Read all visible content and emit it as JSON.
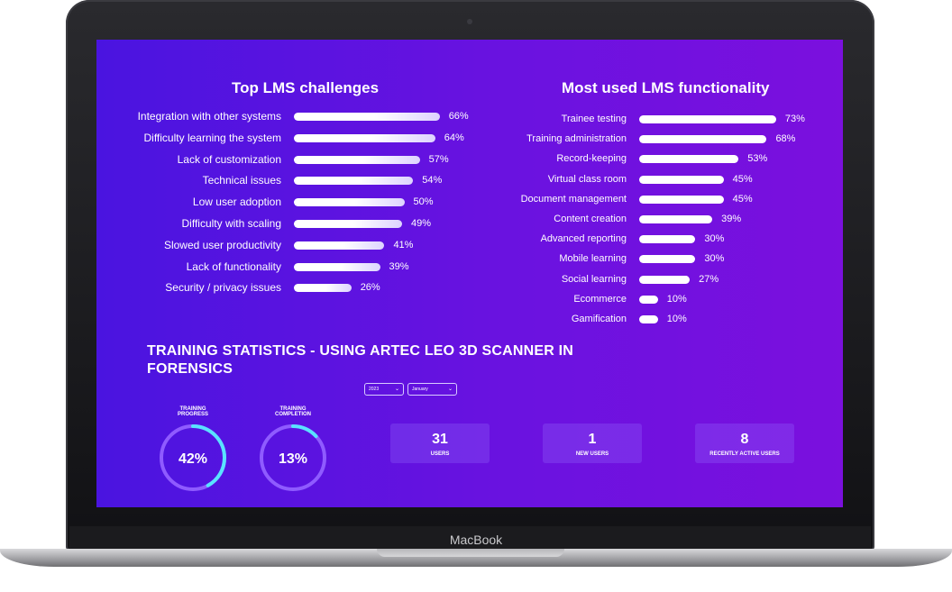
{
  "device": {
    "brand_text": "MacBook"
  },
  "colors": {
    "screen_bg_start": "#4a14e0",
    "screen_bg_end": "#7b10de",
    "ring_track": "#8f5bff",
    "ring_progress": "#59e3ff",
    "bar": "#ffffff"
  },
  "chart_data": [
    {
      "type": "bar",
      "orientation": "horizontal",
      "title": "Top LMS challenges",
      "categories": [
        "Integration with other systems",
        "Difficulty learning the system",
        "Lack of customization",
        "Technical issues",
        "Low user adoption",
        "Difficulty with scaling",
        "Slowed user productivity",
        "Lack of functionality",
        "Security / privacy issues"
      ],
      "values": [
        66,
        64,
        57,
        54,
        50,
        49,
        41,
        39,
        26
      ],
      "value_labels": [
        "66%",
        "64%",
        "57%",
        "54%",
        "50%",
        "49%",
        "41%",
        "39%",
        "26%"
      ],
      "xlim": [
        0,
        100
      ],
      "grid": false
    },
    {
      "type": "bar",
      "orientation": "horizontal",
      "title": "Most used LMS functionality",
      "categories": [
        "Trainee testing",
        "Training administration",
        "Record-keeping",
        "Virtual class room",
        "Document management",
        "Content creation",
        "Advanced reporting",
        "Mobile learning",
        "Social learning",
        "Ecommerce",
        "Gamification"
      ],
      "values": [
        73,
        68,
        53,
        45,
        45,
        39,
        30,
        30,
        27,
        10,
        10
      ],
      "value_labels": [
        "73%",
        "68%",
        "53%",
        "45%",
        "45%",
        "39%",
        "30%",
        "30%",
        "27%",
        "10%",
        "10%"
      ],
      "xlim": [
        0,
        100
      ],
      "grid": false
    }
  ],
  "stats": {
    "heading": "TRAINING STATISTICS - USING ARTEC LEO 3D SCANNER IN FORENSICS",
    "filters": {
      "year": "2023",
      "month": "January"
    },
    "rings": [
      {
        "title_line1": "TRAINING",
        "title_line2": "PROGRESS",
        "value": 42,
        "label": "42%"
      },
      {
        "title_line1": "TRAINING",
        "title_line2": "COMPLETION",
        "value": 13,
        "label": "13%"
      }
    ],
    "cards": [
      {
        "number": "31",
        "label": "USERS"
      },
      {
        "number": "1",
        "label": "NEW USERS"
      },
      {
        "number": "8",
        "label": "RECENTLY ACTIVE USERS"
      }
    ]
  }
}
